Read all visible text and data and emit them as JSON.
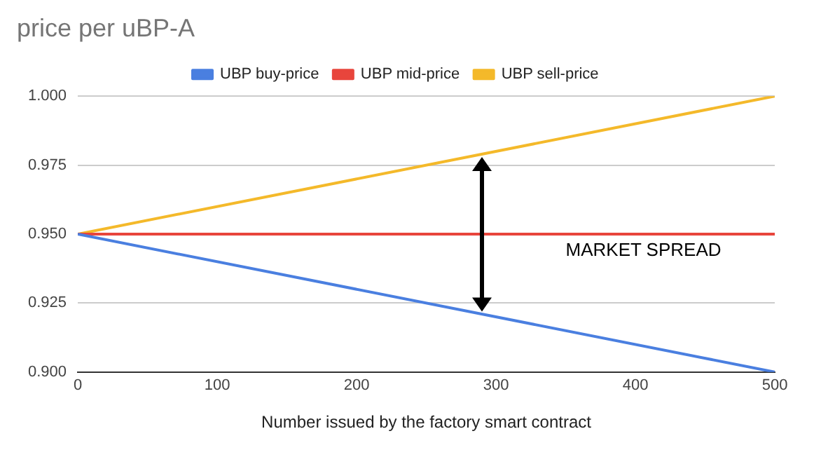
{
  "chart_data": {
    "type": "line",
    "title": "price per uBP-A",
    "xlabel": "Number issued by the factory smart contract",
    "x": [
      0,
      500
    ],
    "series": [
      {
        "name": "UBP buy-price",
        "color": "#4a7fe0",
        "values": [
          0.95,
          0.9
        ]
      },
      {
        "name": "UBP mid-price",
        "color": "#e8453c",
        "values": [
          0.95,
          0.95
        ]
      },
      {
        "name": "UBP sell-price",
        "color": "#f4b92a",
        "values": [
          0.95,
          1.0
        ]
      }
    ],
    "xlim": [
      0,
      500
    ],
    "xticks": [
      0,
      100,
      200,
      300,
      400,
      500
    ],
    "ylim": [
      0.9,
      1.0
    ],
    "yticks": [
      {
        "value": 0.9,
        "label": "0.900"
      },
      {
        "value": 0.925,
        "label": "0.925"
      },
      {
        "value": 0.95,
        "label": "0.950"
      },
      {
        "value": 0.975,
        "label": "0.975"
      },
      {
        "value": 1.0,
        "label": "1.000"
      }
    ],
    "grid": "y",
    "legend": "top",
    "marker": "none",
    "line_style": "solid",
    "annotations": [
      "MARKET SPREAD"
    ]
  }
}
